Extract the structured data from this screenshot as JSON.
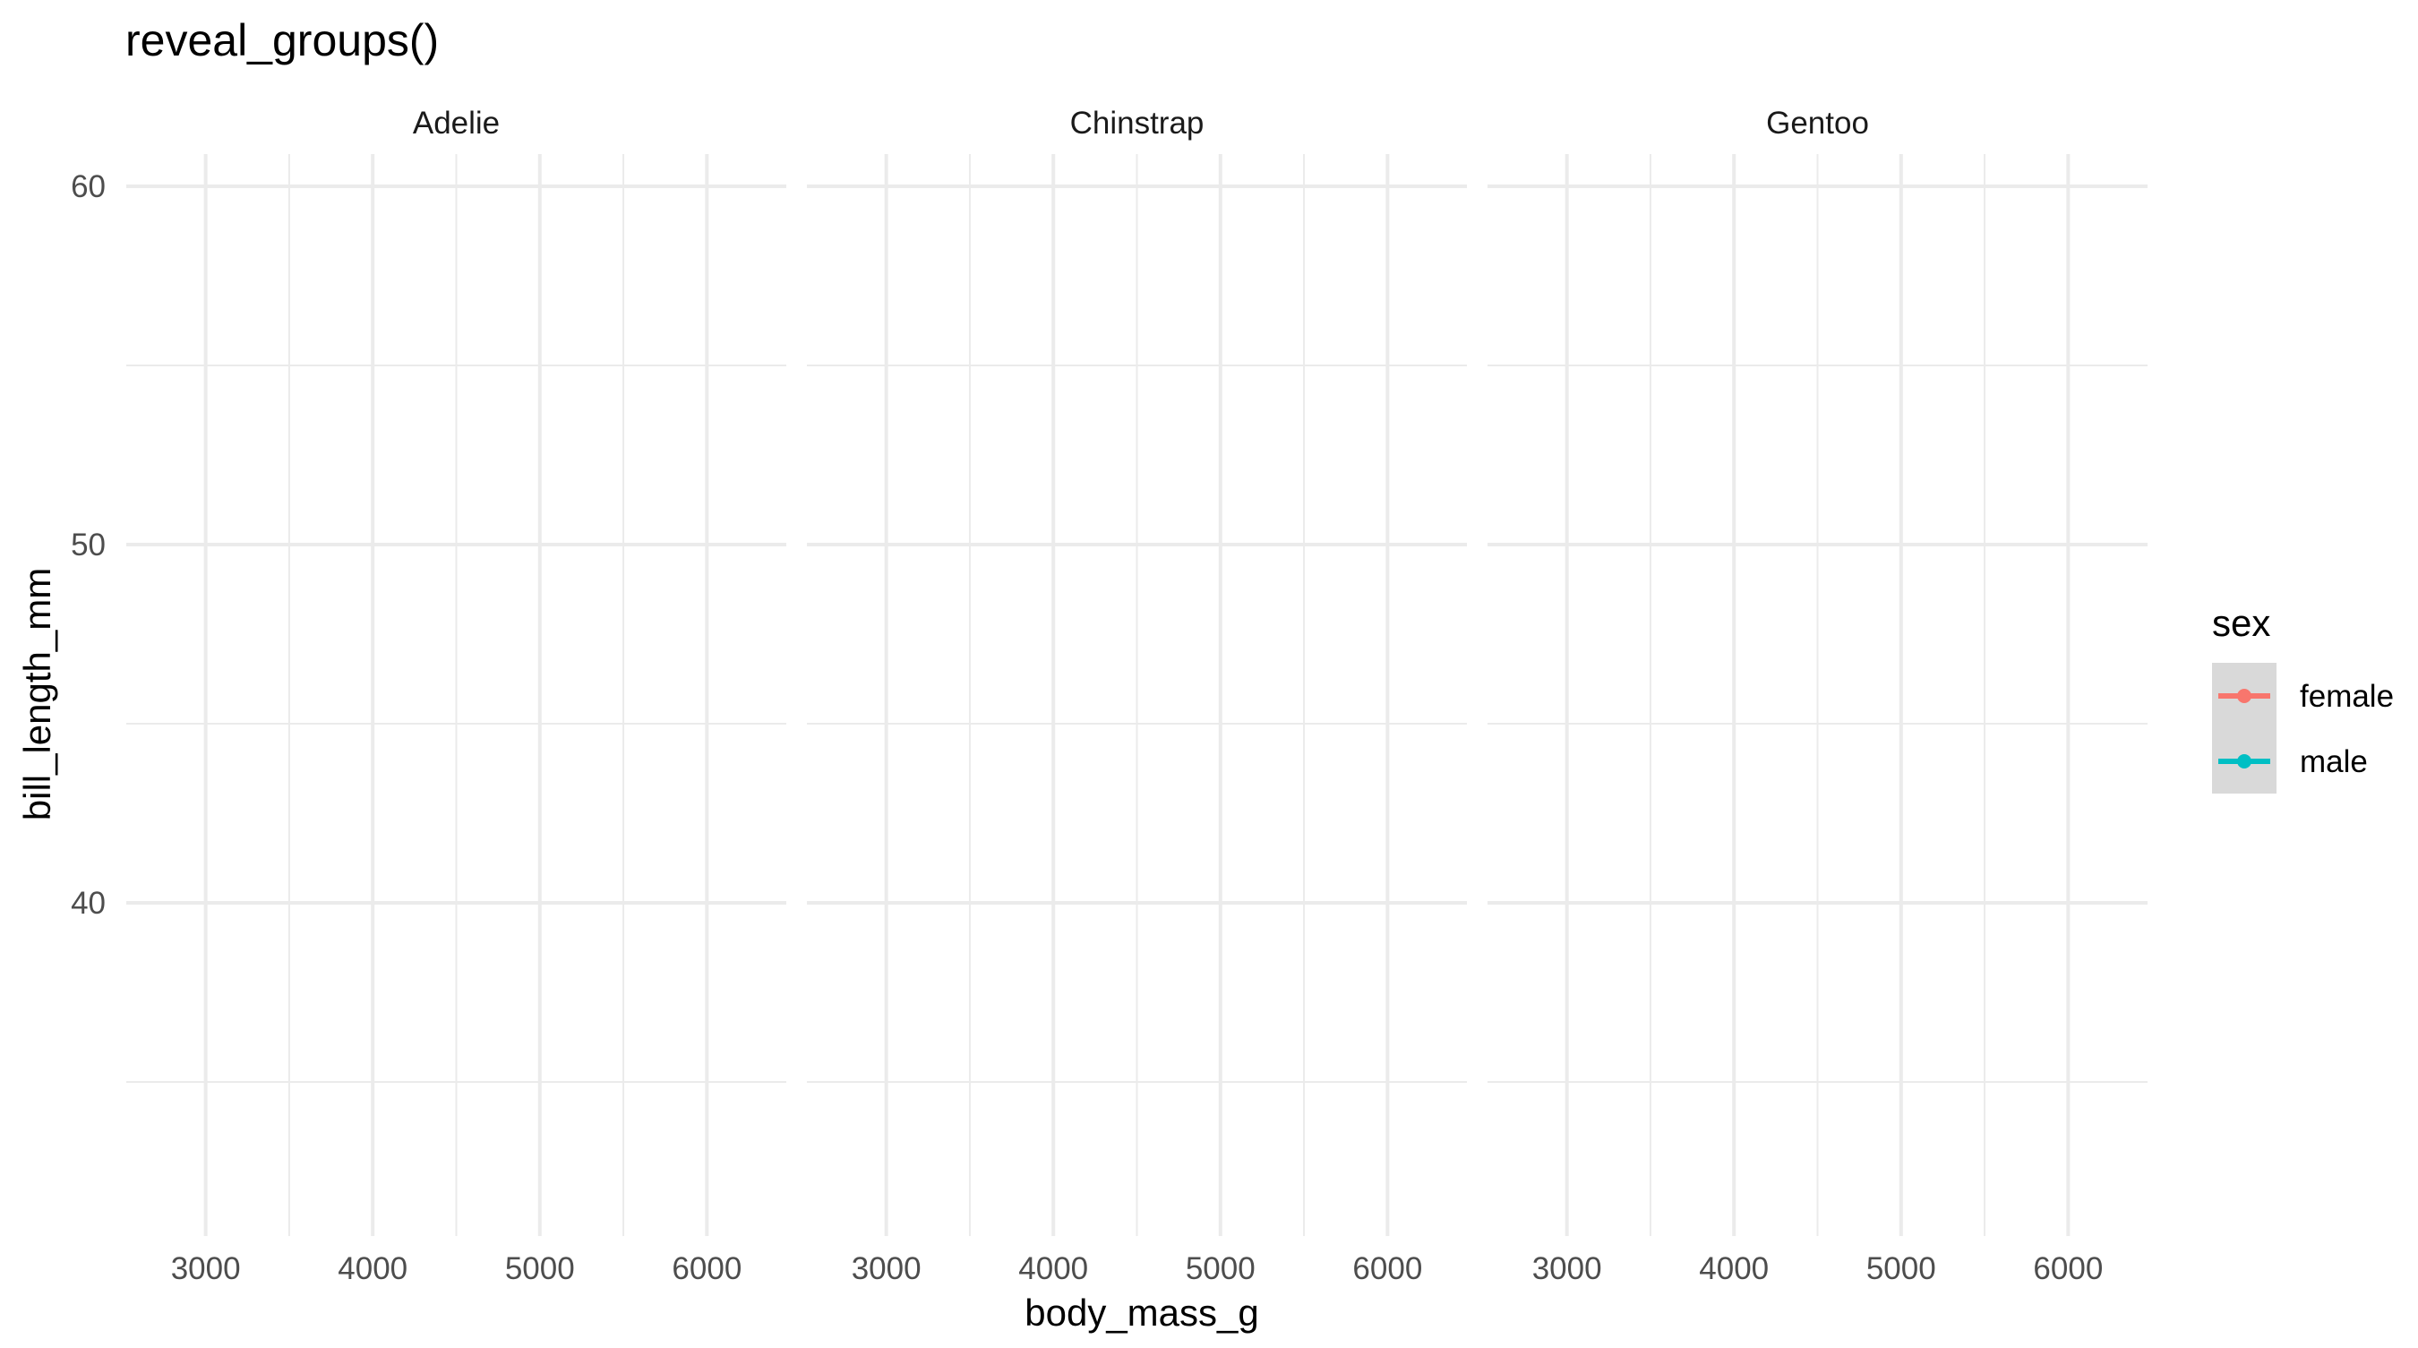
{
  "chart_data": {
    "type": "scatter",
    "title": "reveal_groups()",
    "xlabel": "body_mass_g",
    "ylabel": "bill_length_mm",
    "facets": [
      "Adelie",
      "Chinstrap",
      "Gentoo"
    ],
    "xlim": [
      2525,
      6475
    ],
    "ylim": [
      30.7,
      60.9
    ],
    "x_ticks": [
      3000,
      4000,
      5000,
      6000
    ],
    "x_minor_ticks": [
      3500,
      4500,
      5500
    ],
    "y_ticks": [
      40,
      50,
      60
    ],
    "y_minor_ticks": [
      35,
      45,
      55
    ],
    "grid": true,
    "legend": {
      "title": "sex",
      "position": "right",
      "entries": [
        {
          "label": "female",
          "color": "#F8766D"
        },
        {
          "label": "male",
          "color": "#00BFC4"
        }
      ]
    },
    "series": [
      {
        "name": "female",
        "color": "#F8766D",
        "points": []
      },
      {
        "name": "male",
        "color": "#00BFC4",
        "points": []
      }
    ]
  }
}
